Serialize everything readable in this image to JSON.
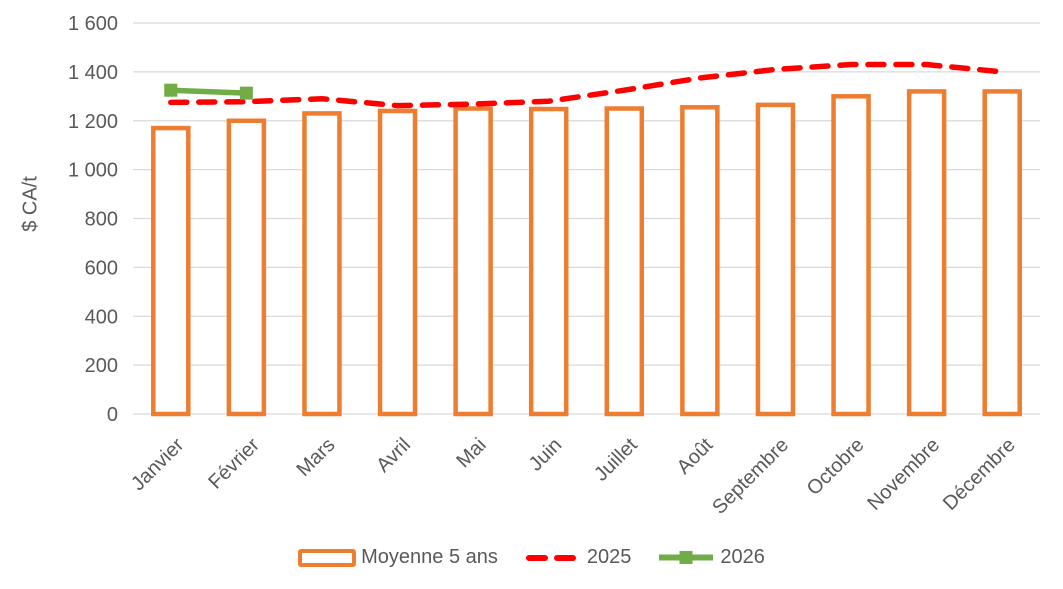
{
  "chart_data": {
    "type": "combo",
    "title": "",
    "ylabel": "$ CA/t",
    "xlabel": "",
    "categories": [
      "Janvier",
      "Février",
      "Mars",
      "Avril",
      "Mai",
      "Juin",
      "Juillet",
      "Août",
      "Septembre",
      "Octobre",
      "Novembre",
      "Décembre"
    ],
    "y_axis": {
      "min": 0,
      "max": 1600,
      "tick_interval": 200,
      "tick_labels": [
        "0",
        "200",
        "400",
        "600",
        "800",
        "1 000",
        "1 200",
        "1 400",
        "1 600"
      ]
    },
    "series": [
      {
        "name": "Moyenne 5 ans",
        "type": "bar",
        "color": "#ED7D31",
        "values": [
          1170,
          1200,
          1230,
          1240,
          1250,
          1248,
          1250,
          1255,
          1265,
          1300,
          1320,
          1320
        ]
      },
      {
        "name": "2025",
        "type": "dashed-line",
        "color": "#FF0000",
        "values": [
          1275,
          1278,
          1290,
          1262,
          1268,
          1280,
          1325,
          1375,
          1410,
          1430,
          1430,
          1400
        ]
      },
      {
        "name": "2026",
        "type": "line-square-marker",
        "color": "#70AD47",
        "values": [
          1325,
          1313,
          null,
          null,
          null,
          null,
          null,
          null,
          null,
          null,
          null,
          null
        ]
      }
    ],
    "grid_on": true,
    "grid_color": "#D9D9D9",
    "axis_text_color": "#595959",
    "legend_position": "bottom",
    "background": "#FFFFFF"
  }
}
